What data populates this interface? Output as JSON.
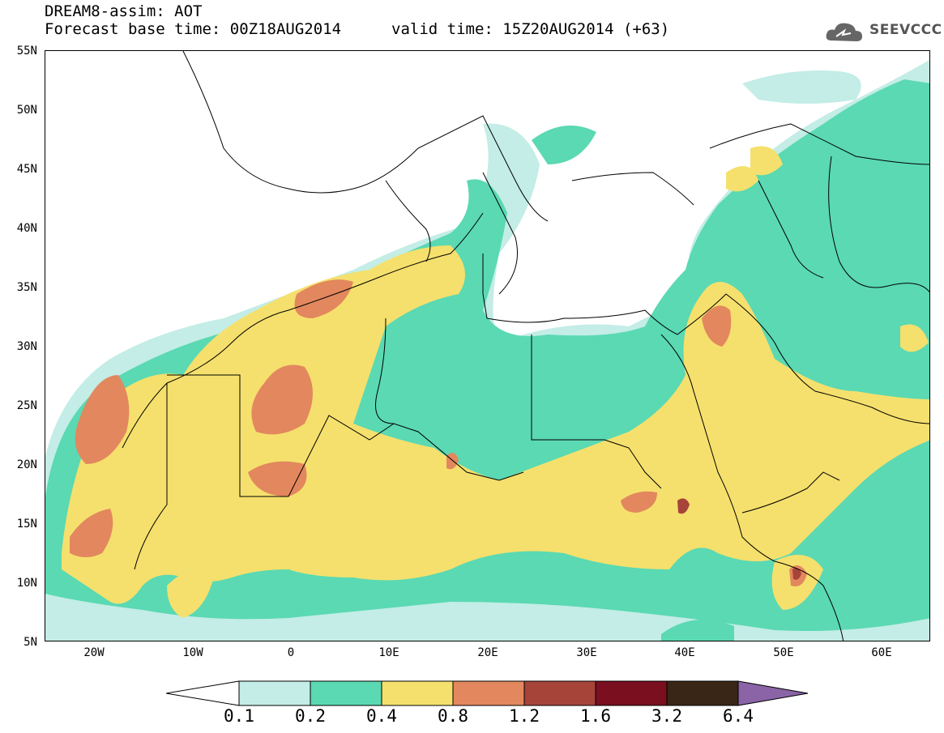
{
  "header": {
    "title_line1": "DREAM8-assim: AOT",
    "title_line2": "Forecast base time: 00Z18AUG2014",
    "valid_time": "valid time: 15Z20AUG2014 (+63)",
    "logo_text": "SEEVCCC"
  },
  "map": {
    "lat_labels": [
      "55N",
      "50N",
      "45N",
      "40N",
      "35N",
      "30N",
      "25N",
      "20N",
      "15N",
      "10N",
      "5N"
    ],
    "lon_labels": [
      "20W",
      "10W",
      "0",
      "10E",
      "20E",
      "30E",
      "40E",
      "50E",
      "60E"
    ]
  },
  "legend": {
    "labels": [
      "0.1",
      "0.2",
      "0.4",
      "0.8",
      "1.2",
      "1.6",
      "3.2",
      "6.4"
    ],
    "colors": [
      "#ffffff",
      "#c3ede6",
      "#5ad9b3",
      "#f5e06d",
      "#e3875e",
      "#a6443a",
      "#7a0f20",
      "#3a2616",
      "#8a64a6"
    ]
  }
}
